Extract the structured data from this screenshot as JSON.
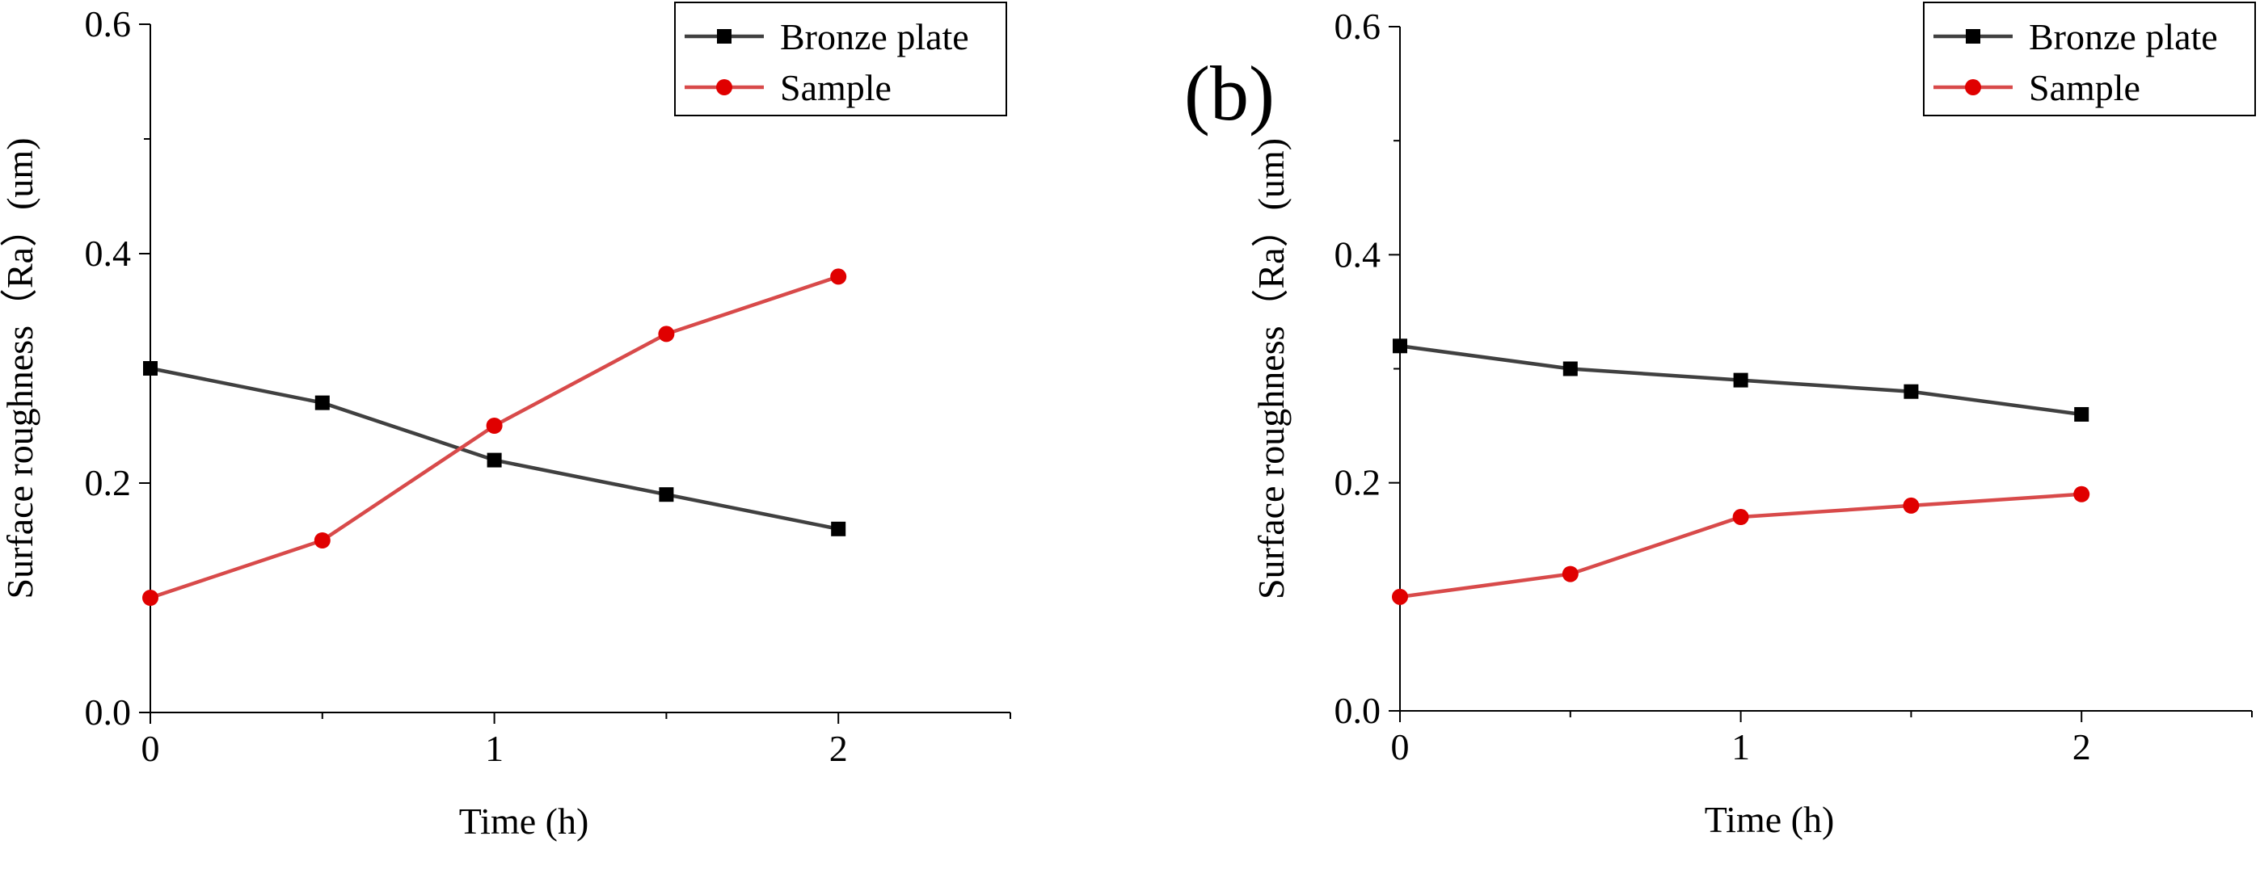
{
  "chart_data": [
    {
      "type": "line",
      "panel_label": "",
      "xlabel": "Time (h)",
      "ylabel": "Surface roughness（Ra）(um)",
      "xlim": [
        0,
        2.5
      ],
      "ylim": [
        0,
        0.6
      ],
      "x_ticks": [
        0,
        1,
        2
      ],
      "x_tick_labels": [
        "0",
        "1",
        "2"
      ],
      "y_ticks": [
        0,
        0.2,
        0.4,
        0.6
      ],
      "y_tick_labels": [
        "0.0",
        "0.2",
        "0.4",
        "0.6"
      ],
      "grid": false,
      "legend_position": "top-right",
      "x": [
        0,
        0.5,
        1,
        1.5,
        2
      ],
      "series": [
        {
          "name": "Bronze plate",
          "marker": "square",
          "color": "#404040",
          "marker_color": "#000000",
          "values": [
            0.3,
            0.27,
            0.22,
            0.19,
            0.16
          ]
        },
        {
          "name": "Sample",
          "marker": "circle",
          "color": "#d84a4a",
          "marker_color": "#e00000",
          "values": [
            0.1,
            0.15,
            0.25,
            0.33,
            0.38
          ]
        }
      ]
    },
    {
      "type": "line",
      "panel_label": "(b)",
      "xlabel": "Time (h)",
      "ylabel": "Surface roughness（Ra）(um)",
      "xlim": [
        0,
        2.5
      ],
      "ylim": [
        0,
        0.6
      ],
      "x_ticks": [
        0,
        1,
        2
      ],
      "x_tick_labels": [
        "0",
        "1",
        "2"
      ],
      "y_ticks": [
        0,
        0.2,
        0.4,
        0.6
      ],
      "y_tick_labels": [
        "0.0",
        "0.2",
        "0.4",
        "0.6"
      ],
      "grid": false,
      "legend_position": "top-right",
      "x": [
        0,
        0.5,
        1,
        1.5,
        2
      ],
      "series": [
        {
          "name": "Bronze plate",
          "marker": "square",
          "color": "#404040",
          "marker_color": "#000000",
          "values": [
            0.32,
            0.3,
            0.29,
            0.28,
            0.26
          ]
        },
        {
          "name": "Sample",
          "marker": "circle",
          "color": "#d84a4a",
          "marker_color": "#e00000",
          "values": [
            0.1,
            0.12,
            0.17,
            0.18,
            0.19
          ]
        }
      ]
    }
  ]
}
